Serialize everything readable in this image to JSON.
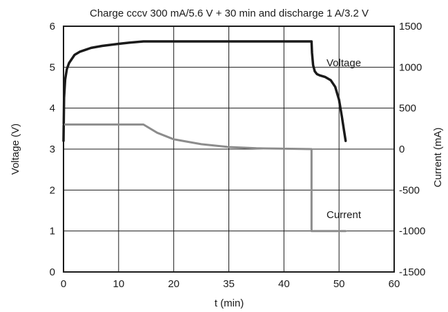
{
  "chart_data": {
    "type": "line",
    "title": "Charge cccv 300 mA/5.6 V + 30 min and discharge 1 A/3.2 V",
    "xlabel": "t (min)",
    "ylabel": "Voltage (V)",
    "y2label": "Current (mA)",
    "xlim": [
      0,
      60
    ],
    "ylim": [
      0,
      6
    ],
    "y2lim": [
      -1500,
      1500
    ],
    "xticks": [
      "0",
      "10",
      "20",
      "35",
      "40",
      "50",
      "60"
    ],
    "yticks": [
      "0",
      "1",
      "2",
      "3",
      "4",
      "5",
      "6"
    ],
    "y2ticks": [
      "-1500",
      "-1000",
      "-500",
      "0",
      "500",
      "1000",
      "1500"
    ],
    "grid": true,
    "series": [
      {
        "name": "Voltage",
        "axis": "left",
        "color": "#1a1a1a",
        "x": [
          0.0,
          0.1,
          0.3,
          0.6,
          1.0,
          2.0,
          3.0,
          5.0,
          7.0,
          10.0,
          12.0,
          14.5,
          20.0,
          30.0,
          40.0,
          45.0,
          45.1,
          45.3,
          45.6,
          46.0,
          46.5,
          47.5,
          48.5,
          49.3,
          50.0,
          50.5,
          50.9,
          51.2
        ],
        "values": [
          3.2,
          4.25,
          4.7,
          4.95,
          5.1,
          5.3,
          5.38,
          5.47,
          5.52,
          5.57,
          5.6,
          5.63,
          5.63,
          5.63,
          5.63,
          5.63,
          5.35,
          5.05,
          4.9,
          4.83,
          4.8,
          4.76,
          4.68,
          4.52,
          4.2,
          3.8,
          3.45,
          3.2
        ]
      },
      {
        "name": "Current",
        "axis": "right",
        "color": "#8c8c8c",
        "x": [
          0,
          14.5,
          17,
          20,
          25,
          30,
          35,
          40,
          45,
          45,
          51.2
        ],
        "values": [
          300,
          300,
          200,
          120,
          60,
          25,
          10,
          5,
          0,
          -1000,
          -1000
        ]
      }
    ]
  }
}
